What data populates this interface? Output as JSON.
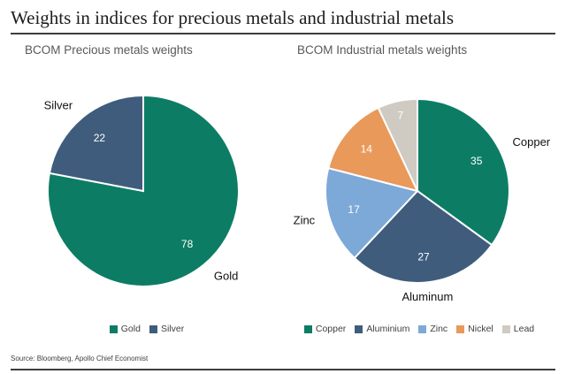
{
  "page": {
    "title": "Weights in indices for precious metals and industrial metals",
    "source_note": "Source: Bloomberg, Apollo Chief Economist"
  },
  "chart_data": [
    {
      "type": "pie",
      "title": "BCOM Precious metals weights",
      "start_angle_deg": 0,
      "direction": "clockwise",
      "legend_position": "bottom",
      "slices": [
        {
          "label": "Gold",
          "value": 78,
          "color": "#0c7d64",
          "legend_label": "Gold",
          "show_label_outside": true
        },
        {
          "label": "Silver",
          "value": 22,
          "color": "#3f5c7c",
          "legend_label": "Silver",
          "show_label_outside": true
        }
      ]
    },
    {
      "type": "pie",
      "title": "BCOM Industrial metals weights",
      "start_angle_deg": 0,
      "direction": "clockwise",
      "legend_position": "bottom",
      "slices": [
        {
          "label": "Copper",
          "value": 35,
          "color": "#0c7d64",
          "legend_label": "Copper",
          "show_label_outside": true
        },
        {
          "label": "Aluminum",
          "value": 27,
          "color": "#3f5c7c",
          "legend_label": "Aluminium",
          "show_label_outside": true
        },
        {
          "label": "Zinc",
          "value": 17,
          "color": "#7da9d8",
          "legend_label": "Zinc",
          "show_label_outside": true
        },
        {
          "label": "Nickel",
          "value": 14,
          "color": "#e9995a",
          "legend_label": "Nickel",
          "show_label_outside": false
        },
        {
          "label": "Lead",
          "value": 7,
          "color": "#cfcac2",
          "legend_label": "Lead",
          "show_label_outside": false
        }
      ]
    }
  ]
}
